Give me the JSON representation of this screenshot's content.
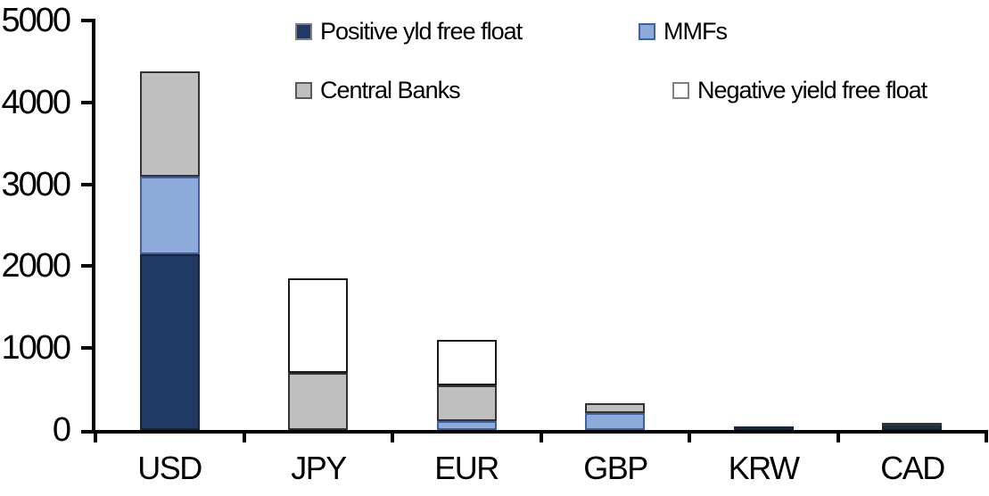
{
  "chart_data": {
    "type": "bar",
    "stacked": true,
    "title": "",
    "categories": [
      "USD",
      "JPY",
      "EUR",
      "GBP",
      "KRW",
      "CAD"
    ],
    "series": [
      {
        "name": "Positive yld free float",
        "color": "#1F3864",
        "segment_border": "#17243E",
        "swatch_border": "#808080",
        "values": [
          2150,
          0,
          0,
          0,
          45,
          55
        ]
      },
      {
        "name": "MMFs",
        "color": "#8EAADB",
        "segment_border": "#3F5F9F",
        "swatch_border": "#41639C",
        "values": [
          940,
          0,
          110,
          210,
          0,
          0
        ]
      },
      {
        "name": "Central Banks",
        "color": "#BFBFBF",
        "segment_border": "#333333",
        "swatch_border": "#595959",
        "values": [
          1290,
          700,
          435,
          120,
          0,
          30
        ]
      },
      {
        "name": "Negative yield free float",
        "color": "#FFFFFF",
        "segment_border": "#1A1A1A",
        "swatch_border": "#808080",
        "values": [
          0,
          1150,
          555,
          0,
          0,
          0
        ]
      }
    ],
    "totals": [
      4380,
      1850,
      1100,
      330,
      45,
      85
    ],
    "ylim": [
      0,
      5000
    ],
    "yticks": [
      0,
      1000,
      2000,
      3000,
      4000,
      5000
    ],
    "ytick_labels": [
      "0",
      "1000",
      "2000",
      "3000",
      "4000",
      "5000"
    ],
    "xlabel": "",
    "ylabel": "",
    "grid": false,
    "legend_position": "top-inside",
    "legend_rows": [
      [
        "Positive yld free float",
        "MMFs"
      ],
      [
        "Central Banks",
        "Negative yield free float"
      ]
    ],
    "axis_color": "#000000",
    "background": "#FFFFFF"
  }
}
